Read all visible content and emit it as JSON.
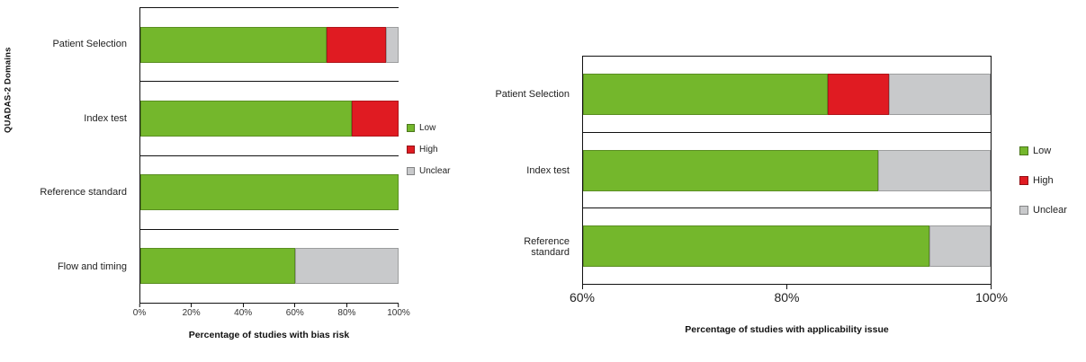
{
  "chart_data": [
    {
      "type": "bar",
      "orientation": "horizontal-stacked",
      "title": "",
      "ylabel": "QUADAS-2 Domains",
      "xlabel": "Percentage of studies with bias risk",
      "categories": [
        "Patient Selection",
        "Index test",
        "Reference standard",
        "Flow and timing"
      ],
      "series": [
        {
          "name": "Low",
          "color": "#74b72c",
          "values": [
            72,
            82,
            100,
            60
          ]
        },
        {
          "name": "High",
          "color": "#e01b22",
          "values": [
            23,
            18,
            0,
            0
          ]
        },
        {
          "name": "Unclear",
          "color": "#c8c9cb",
          "values": [
            5,
            0,
            0,
            40
          ]
        }
      ],
      "xlim": [
        0,
        100
      ],
      "xtick_labels": [
        "0%",
        "20%",
        "40%",
        "60%",
        "80%",
        "100%"
      ],
      "legend_entries": [
        "Low",
        "High",
        "Unclear"
      ],
      "legend_position": "right",
      "grid": "category-separator-lines"
    },
    {
      "type": "bar",
      "orientation": "horizontal-stacked",
      "title": "",
      "ylabel": "",
      "xlabel": "Percentage of studies with applicability issue",
      "categories": [
        "Patient Selection",
        "Index test",
        "Reference standard"
      ],
      "series": [
        {
          "name": "Low",
          "color": "#74b72c",
          "values": [
            84,
            89,
            94
          ]
        },
        {
          "name": "High",
          "color": "#e01b22",
          "values": [
            6,
            0,
            0
          ]
        },
        {
          "name": "Unclear",
          "color": "#c8c9cb",
          "values": [
            10,
            11,
            6
          ]
        }
      ],
      "xlim": [
        60,
        100
      ],
      "xtick_labels": [
        "60%",
        "80%",
        "100%"
      ],
      "legend_entries": [
        "Low",
        "High",
        "Unclear"
      ],
      "legend_position": "right",
      "grid": "category-separator-lines"
    }
  ]
}
